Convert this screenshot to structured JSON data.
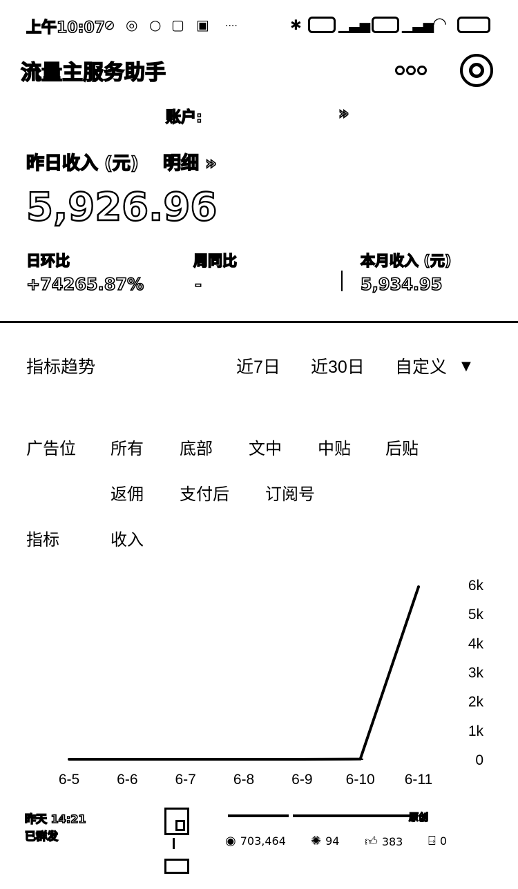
{
  "status_bar": {
    "time": "上午10:07",
    "icons": [
      "no-disturb-icon",
      "sync-icon",
      "dot-icon",
      "notification-icon",
      "signal-icon",
      "more-icon",
      "bluetooth-icon",
      "hd-icon",
      "signal-bars-icon",
      "wifi-icon",
      "battery-icon"
    ],
    "ellipsis": "····"
  },
  "header": {
    "title": "流量主服务助手",
    "more_icon": "more-dots-icon",
    "close_icon": "close-circle-icon"
  },
  "account": {
    "label": "账户:",
    "chevron": "»"
  },
  "summary": {
    "yesterday_label": "昨日收入 (元)",
    "detail_link": "明细 »",
    "yesterday_value": "5,926.96",
    "stats": [
      {
        "label": "日环比",
        "value": "+74265.87%"
      },
      {
        "label": "周同比",
        "value": "-"
      },
      {
        "label": "本月收入 (元)",
        "value": "5,934.95"
      }
    ]
  },
  "trend": {
    "title": "指标趋势",
    "ranges": [
      "近7日",
      "近30日",
      "自定义"
    ],
    "custom_caret": "▼",
    "ad_position_label": "广告位",
    "ad_positions": [
      "所有",
      "底部",
      "文中",
      "中贴",
      "后贴",
      "返佣",
      "支付后",
      "订阅号"
    ],
    "metric_label": "指标",
    "metric_value": "收入"
  },
  "chart_data": {
    "type": "line",
    "categories": [
      "6-5",
      "6-6",
      "6-7",
      "6-8",
      "6-9",
      "6-10",
      "6-11"
    ],
    "values": [
      0,
      0,
      0,
      0,
      0,
      8,
      5927
    ],
    "y_tick_labels": [
      "0",
      "1k",
      "2k",
      "3k",
      "4k",
      "5k",
      "6k"
    ],
    "ylim": [
      0,
      6000
    ],
    "y_axis_side": "right",
    "grid": false,
    "line_color": "#000000"
  },
  "article": {
    "time": "昨天 14:21",
    "status": "已群发",
    "tag": "原创",
    "metrics": [
      {
        "icon": "eye-icon",
        "value": "703,464"
      },
      {
        "icon": "share-icon",
        "value": "94"
      },
      {
        "icon": "thumbs-up-icon",
        "value": "383"
      },
      {
        "icon": "share-out-icon",
        "value": "0"
      }
    ]
  }
}
